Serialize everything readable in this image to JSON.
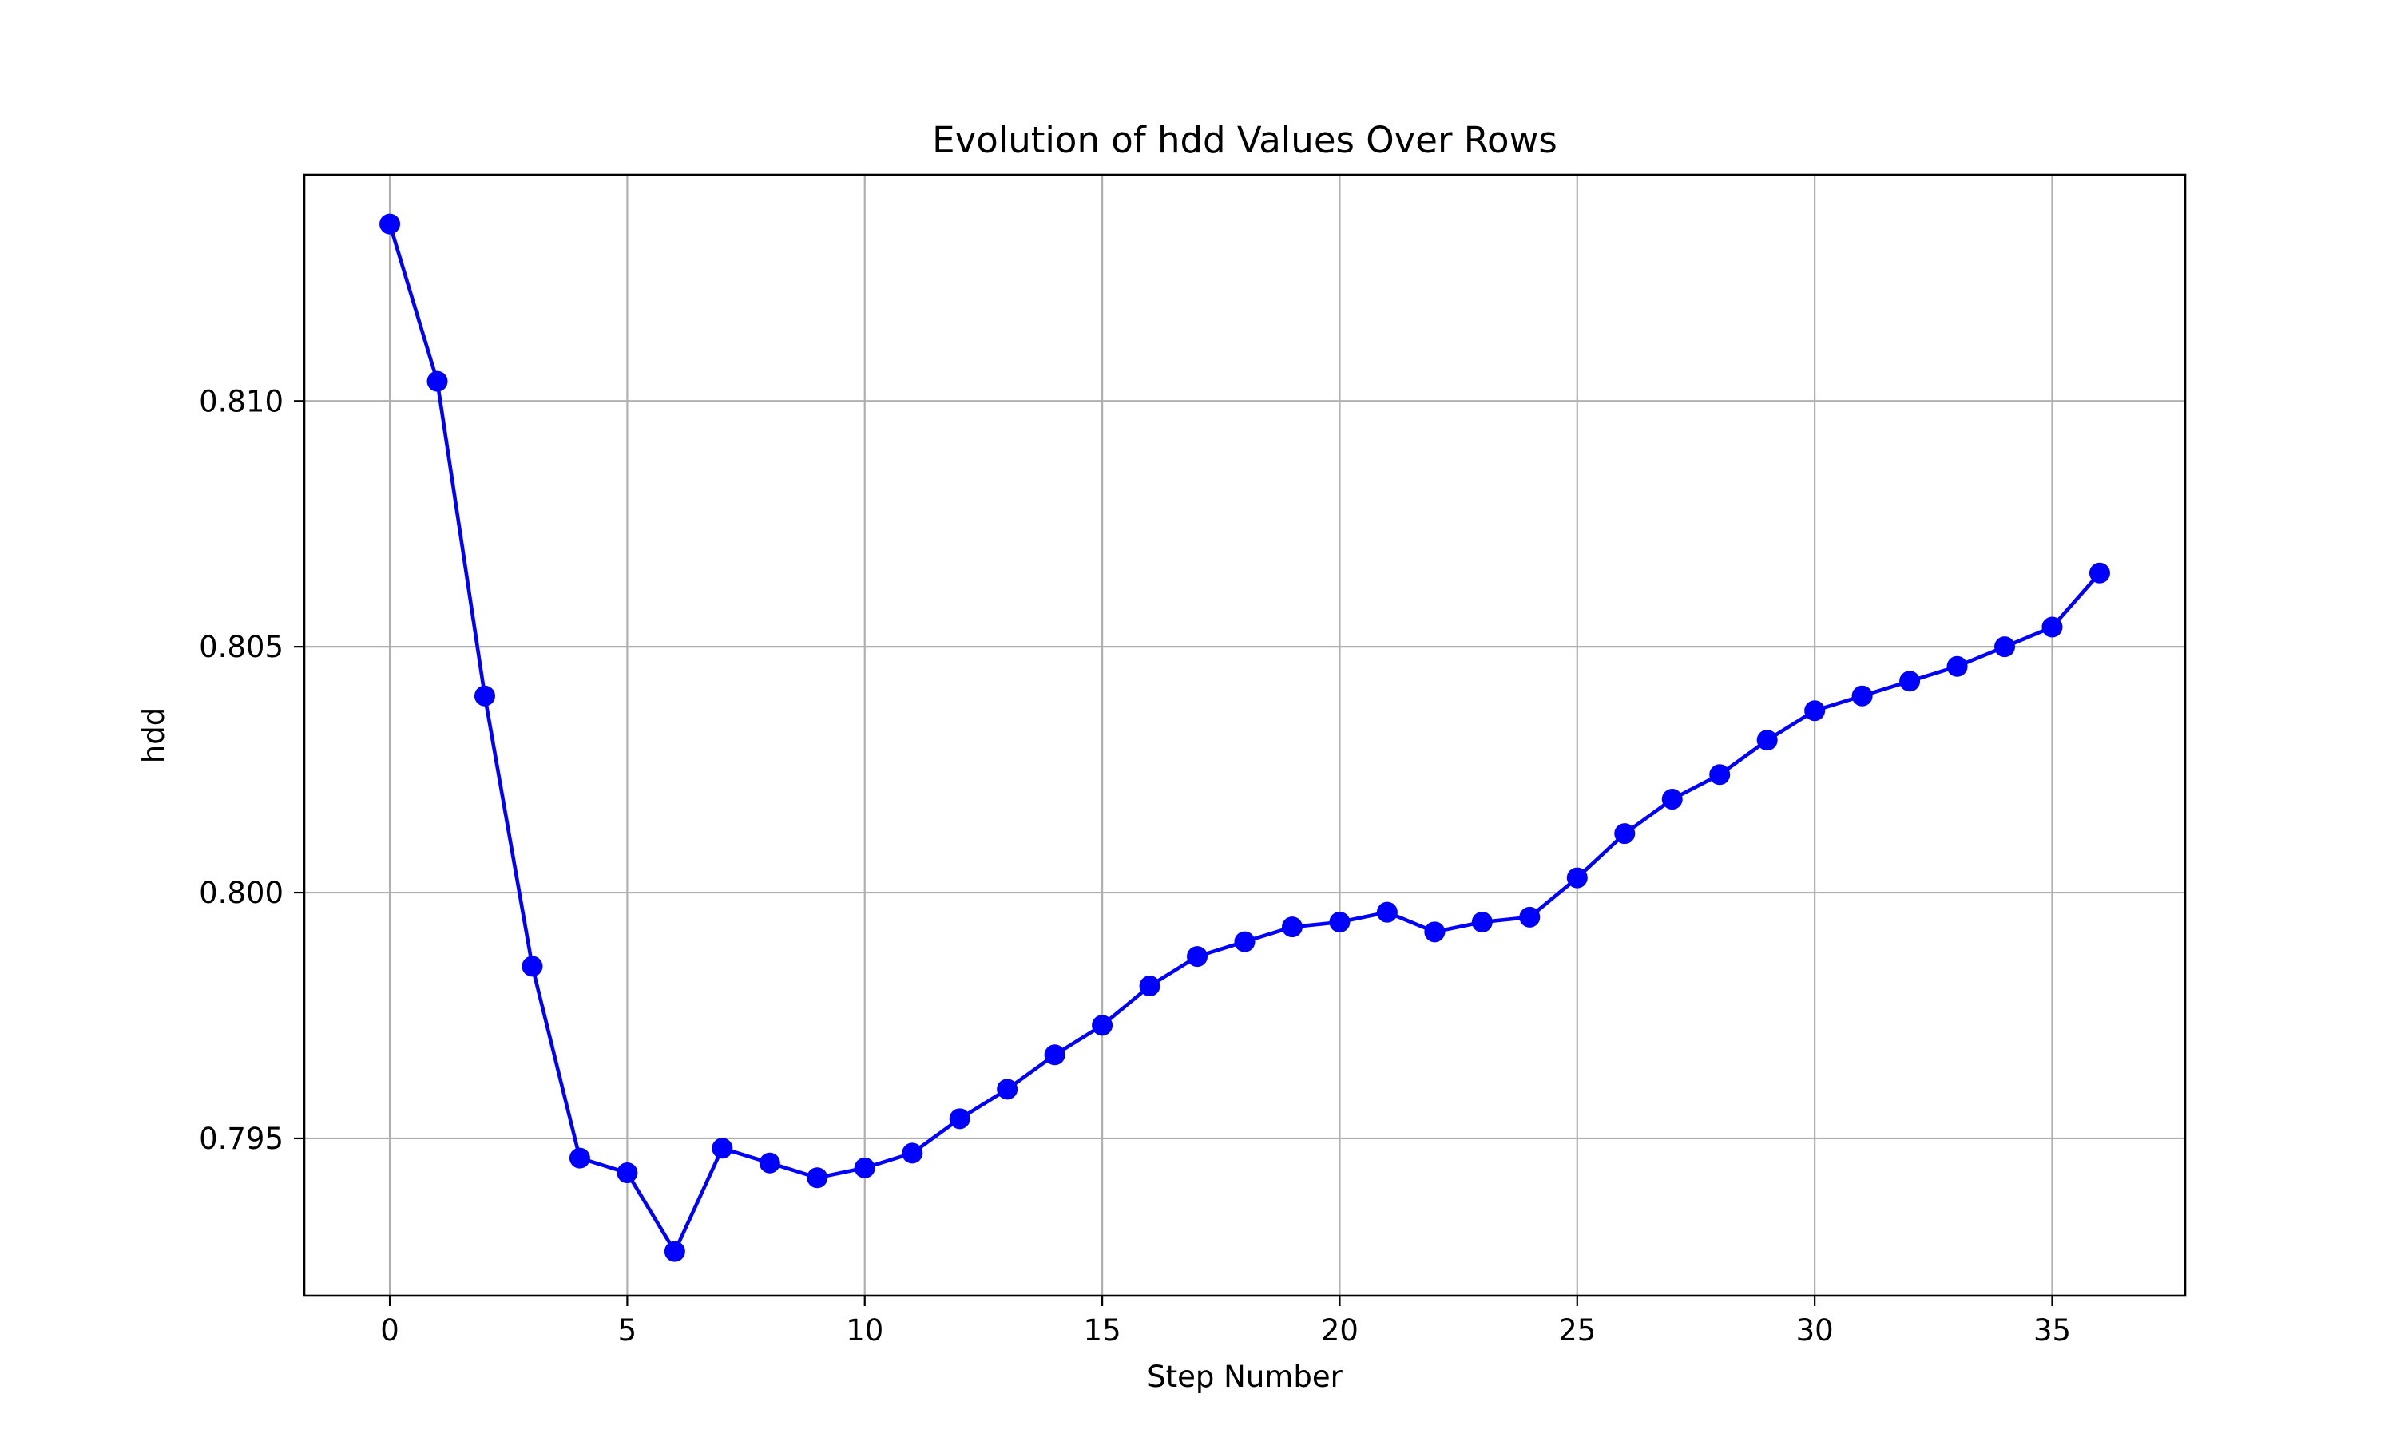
{
  "chart_data": {
    "type": "line",
    "title": "Evolution of hdd Values Over Rows",
    "xlabel": "Step Number",
    "ylabel": "hdd",
    "x": [
      0,
      1,
      2,
      3,
      4,
      5,
      6,
      7,
      8,
      9,
      10,
      11,
      12,
      13,
      14,
      15,
      16,
      17,
      18,
      19,
      20,
      21,
      22,
      23,
      24,
      25,
      26,
      27,
      28,
      29,
      30,
      31,
      32,
      33,
      34,
      35,
      36
    ],
    "series": [
      {
        "name": "",
        "color": "#0000ff",
        "marker": "circle",
        "values": [
          0.8136,
          0.8104,
          0.804,
          0.7985,
          0.7946,
          0.7943,
          0.7927,
          0.7948,
          0.7945,
          0.7942,
          0.7944,
          0.7947,
          0.7954,
          0.796,
          0.7967,
          0.7973,
          0.7981,
          0.7987,
          0.799,
          0.7993,
          0.7994,
          0.7996,
          0.7992,
          0.7994,
          0.7995,
          0.8003,
          0.8012,
          0.8019,
          0.8024,
          0.8031,
          0.8037,
          0.804,
          0.8043,
          0.8046,
          0.805,
          0.8054,
          0.8065
        ]
      }
    ],
    "xlim": [
      -1.8,
      37.8
    ],
    "ylim": [
      0.7918,
      0.8146
    ],
    "xticks": [
      0,
      5,
      10,
      15,
      20,
      25,
      30,
      35
    ],
    "xtick_labels": [
      "0",
      "5",
      "10",
      "15",
      "20",
      "25",
      "30",
      "35"
    ],
    "yticks": [
      0.795,
      0.8,
      0.805,
      0.81
    ],
    "ytick_labels": [
      "0.795",
      "0.800",
      "0.805",
      "0.810"
    ],
    "grid": true,
    "legend": "none"
  }
}
